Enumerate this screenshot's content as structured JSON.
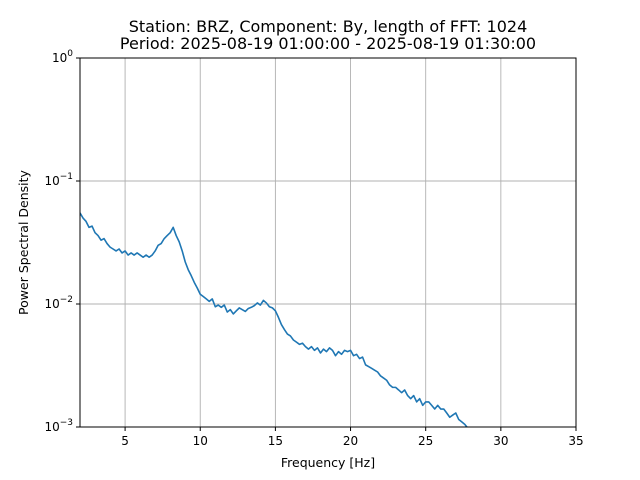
{
  "chart_data": {
    "type": "line",
    "title": "Station: BRZ, Component: By, length of FFT: 1024",
    "subtitle": "Period: 2025-08-19 01:00:00 - 2025-08-19 01:30:00",
    "xlabel": "Frequency [Hz]",
    "ylabel": "Power Spectral Density",
    "xlim": [
      2,
      35
    ],
    "ylim": [
      0.001,
      1
    ],
    "yscale": "log",
    "grid": true,
    "x_ticks": [
      5,
      10,
      15,
      20,
      25,
      30,
      35
    ],
    "x_tick_labels": [
      "5",
      "10",
      "15",
      "20",
      "25",
      "30",
      "35"
    ],
    "y_ticks": [
      0.001,
      0.01,
      0.1,
      1
    ],
    "y_tick_labels": [
      {
        "base": "10",
        "exp": "−3"
      },
      {
        "base": "10",
        "exp": "−2"
      },
      {
        "base": "10",
        "exp": "−1"
      },
      {
        "base": "10",
        "exp": "0"
      }
    ],
    "series": [
      {
        "color": "#1f77b4",
        "x": [
          2.0,
          2.2,
          2.4,
          2.6,
          2.8,
          3.0,
          3.2,
          3.4,
          3.6,
          3.8,
          4.0,
          4.2,
          4.4,
          4.6,
          4.8,
          5.0,
          5.2,
          5.4,
          5.6,
          5.8,
          6.0,
          6.2,
          6.4,
          6.6,
          6.8,
          7.0,
          7.2,
          7.4,
          7.6,
          7.8,
          8.0,
          8.2,
          8.4,
          8.6,
          8.8,
          9.0,
          9.2,
          9.4,
          9.6,
          9.8,
          10.0,
          10.2,
          10.4,
          10.6,
          10.8,
          11.0,
          11.2,
          11.4,
          11.6,
          11.8,
          12.0,
          12.2,
          12.4,
          12.6,
          12.8,
          13.0,
          13.2,
          13.4,
          13.6,
          13.8,
          14.0,
          14.2,
          14.4,
          14.6,
          14.8,
          15.0,
          15.2,
          15.4,
          15.6,
          15.8,
          16.0,
          16.2,
          16.4,
          16.6,
          16.8,
          17.0,
          17.2,
          17.4,
          17.6,
          17.8,
          18.0,
          18.2,
          18.4,
          18.6,
          18.8,
          19.0,
          19.2,
          19.4,
          19.6,
          19.8,
          20.0,
          20.2,
          20.4,
          20.6,
          20.8,
          21.0,
          21.2,
          21.4,
          21.6,
          21.8,
          22.0,
          22.2,
          22.4,
          22.6,
          22.8,
          23.0,
          23.2,
          23.4,
          23.6,
          23.8,
          24.0,
          24.2,
          24.4,
          24.6,
          24.8,
          25.0,
          25.2,
          25.4,
          25.6,
          25.8,
          26.0,
          26.2,
          26.4,
          26.6,
          26.8,
          27.0,
          27.2,
          27.4,
          27.6,
          27.8,
          28.0,
          28.2
        ],
        "y": [
          0.055,
          0.05,
          0.047,
          0.042,
          0.043,
          0.038,
          0.036,
          0.033,
          0.034,
          0.031,
          0.029,
          0.028,
          0.027,
          0.028,
          0.026,
          0.027,
          0.025,
          0.026,
          0.025,
          0.026,
          0.025,
          0.024,
          0.025,
          0.024,
          0.025,
          0.027,
          0.03,
          0.031,
          0.034,
          0.036,
          0.038,
          0.042,
          0.036,
          0.032,
          0.027,
          0.022,
          0.019,
          0.017,
          0.015,
          0.0135,
          0.012,
          0.0115,
          0.011,
          0.0105,
          0.011,
          0.0095,
          0.0098,
          0.0094,
          0.0098,
          0.0086,
          0.009,
          0.0083,
          0.0088,
          0.0093,
          0.009,
          0.0087,
          0.0092,
          0.0094,
          0.0097,
          0.0102,
          0.0098,
          0.0107,
          0.0102,
          0.0095,
          0.0093,
          0.0088,
          0.0078,
          0.0068,
          0.0062,
          0.0057,
          0.0055,
          0.0051,
          0.0049,
          0.0047,
          0.0048,
          0.0045,
          0.0043,
          0.0045,
          0.0042,
          0.0044,
          0.004,
          0.0043,
          0.0041,
          0.0044,
          0.0042,
          0.0038,
          0.0041,
          0.0039,
          0.0042,
          0.0041,
          0.0042,
          0.0038,
          0.0039,
          0.0036,
          0.0037,
          0.0032,
          0.0031,
          0.003,
          0.0029,
          0.0028,
          0.0026,
          0.0025,
          0.0024,
          0.0022,
          0.0021,
          0.0021,
          0.002,
          0.0019,
          0.002,
          0.0018,
          0.0017,
          0.0018,
          0.0016,
          0.0017,
          0.0015,
          0.0016,
          0.0016,
          0.0015,
          0.0014,
          0.0015,
          0.0014,
          0.0014,
          0.0013,
          0.0012,
          0.00125,
          0.0013,
          0.00115,
          0.0011,
          0.00105,
          0.00098,
          0.00092,
          0.00085
        ]
      }
    ]
  }
}
